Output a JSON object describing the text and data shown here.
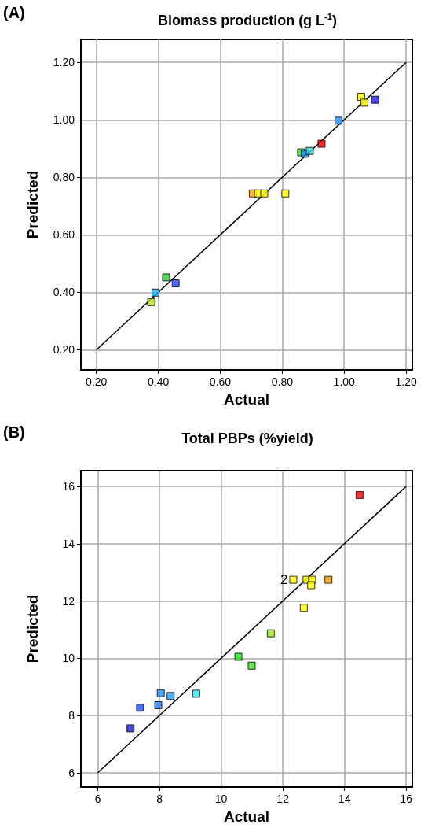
{
  "chart_data": [
    {
      "type": "scatter",
      "title": "Biomass production (g L$^{-1}$)",
      "xlabel": "Actual",
      "ylabel": "Predicted",
      "annotations": [
        "(A)"
      ],
      "xlim": [
        0.15,
        1.22
      ],
      "ylim": [
        0.13,
        1.28
      ],
      "xticks": [
        {
          "value": 0.2,
          "label": "0.20"
        },
        {
          "value": 0.4,
          "label": "0.40"
        },
        {
          "value": 0.6,
          "label": "0.60"
        },
        {
          "value": 0.8,
          "label": "0.80"
        },
        {
          "value": 1.0,
          "label": "1.00"
        },
        {
          "value": 1.2,
          "label": "1.20"
        }
      ],
      "yticks": [
        {
          "value": 0.2,
          "label": "0.20"
        },
        {
          "value": 0.4,
          "label": "0.40"
        },
        {
          "value": 0.6,
          "label": "0.60"
        },
        {
          "value": 0.8,
          "label": "0.80"
        },
        {
          "value": 1.0,
          "label": "1.00"
        },
        {
          "value": 1.2,
          "label": "1.20"
        }
      ],
      "grid": true,
      "series": [
        {
          "marker": "square",
          "x": [
            0.377,
            0.391,
            0.425,
            0.456,
            0.705,
            0.722,
            0.742,
            0.81,
            0.861,
            0.873,
            0.889,
            0.927,
            0.982,
            1.055,
            1.065,
            1.1
          ],
          "values": [
            0.366,
            0.399,
            0.452,
            0.431,
            0.744,
            0.744,
            0.744,
            0.744,
            0.887,
            0.882,
            0.892,
            0.917,
            0.997,
            1.08,
            1.06,
            1.07
          ],
          "colors": [
            "#b5e61d",
            "#1ab2ff",
            "#33cc33",
            "#1f3fff",
            "#ffa500",
            "#ffff00",
            "#ffff00",
            "#ffff00",
            "#33cc33",
            "#1e90ff",
            "#33dddd",
            "#ff0000",
            "#1e90ff",
            "#ffff00",
            "#ffff00",
            "#1a1aff"
          ]
        },
        {
          "type": "line",
          "marker": "none",
          "color": "#000000",
          "x": [
            0.2,
            1.2
          ],
          "values": [
            0.2,
            1.2
          ]
        }
      ]
    },
    {
      "type": "scatter",
      "title": "Total PBPs (%yield)",
      "xlabel": "Actual",
      "ylabel": "Predicted",
      "annotations": [
        "(B)",
        {
          "text": "2",
          "x": 12.34,
          "y": 12.74
        }
      ],
      "xlim": [
        5.45,
        16.2
      ],
      "ylim": [
        5.5,
        16.55
      ],
      "xticks": [
        6,
        8,
        10,
        12,
        14,
        16
      ],
      "yticks": [
        6,
        8,
        10,
        12,
        14,
        16
      ],
      "grid": true,
      "series": [
        {
          "marker": "square",
          "x": [
            14.49,
            12.34,
            12.77,
            12.95,
            12.92,
            13.48,
            12.68,
            11.61,
            10.56,
            10.99,
            9.19,
            8.36,
            8.04,
            7.96,
            7.37,
            7.06
          ],
          "values": [
            15.7,
            12.74,
            12.74,
            12.74,
            12.55,
            12.74,
            11.76,
            10.87,
            10.05,
            9.74,
            8.76,
            8.68,
            8.78,
            8.36,
            8.27,
            7.55
          ],
          "colors": [
            "#ff0000",
            "#ffff00",
            "#ffff00",
            "#ffff00",
            "#ffff00",
            "#ff9900",
            "#ffff00",
            "#99e619",
            "#22dd22",
            "#44dd22",
            "#33e6e6",
            "#1ea0ff",
            "#1e90ff",
            "#2080ff",
            "#1a4dff",
            "#1a1acc"
          ]
        },
        {
          "type": "line",
          "marker": "none",
          "color": "#000000",
          "x": [
            6,
            16
          ],
          "values": [
            6,
            16
          ]
        }
      ]
    }
  ]
}
